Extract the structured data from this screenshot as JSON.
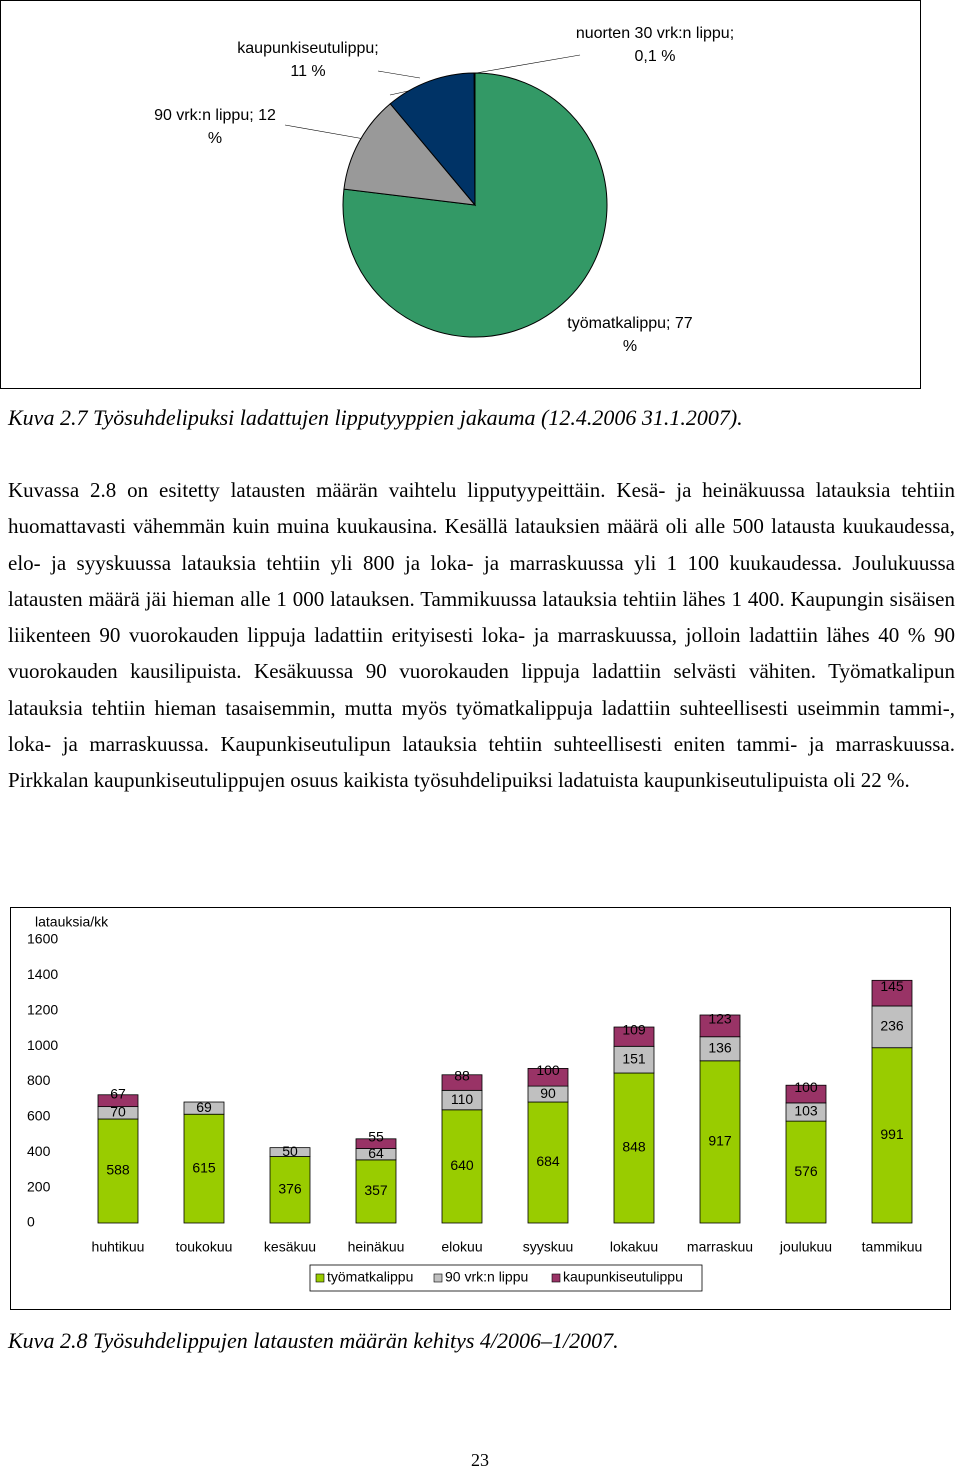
{
  "chart_data": [
    {
      "type": "pie",
      "values": [
        77,
        12,
        11,
        0.1
      ],
      "value_labels": [
        "työmatkalippu; 77 %",
        "90 vrk:n lippu; 12 %",
        "kaupunki­seutulippu; 11 %",
        "nuorten 30 vrk:n lippu; 0,1 %"
      ],
      "colors": [
        "#339966",
        "#999999",
        "#003366",
        "#6666cc"
      ]
    },
    {
      "type": "bar",
      "stacked": true,
      "y_label": "latauksia/kk",
      "categories": [
        "huhtikuu",
        "toukokuu",
        "kesäkuu",
        "heinäkuu",
        "elokuu",
        "syyskuu",
        "lokakuu",
        "marraskuu",
        "joulukuu",
        "tammikuu"
      ],
      "series": [
        {
          "name": "työmatkalippu",
          "color": "#99cc00",
          "values": [
            588,
            615,
            376,
            357,
            640,
            684,
            848,
            917,
            576,
            991
          ]
        },
        {
          "name": "90 vrk:n lippu",
          "color": "#c0c0c0",
          "values": [
            70,
            69,
            50,
            64,
            110,
            90,
            151,
            136,
            103,
            236
          ]
        },
        {
          "name": "kaupunkiseutulippu",
          "color": "#993366",
          "values": [
            67,
            null,
            null,
            55,
            88,
            100,
            109,
            123,
            100,
            145
          ]
        }
      ],
      "ylim": [
        0,
        1600
      ],
      "yticks": [
        0,
        200,
        400,
        600,
        800,
        1000,
        1200,
        1400,
        1600
      ],
      "legend": "bottom"
    }
  ],
  "captions": [
    "Kuva 2.7 Työsuhdelipuksi ladattujen lipputyyppien jakauma (12.4.2006 31.1.2007).",
    "Kuva 2.8 Työsuhdelippujen latausten määrän kehitys 4/2006–1/2007."
  ],
  "paragraph": "Kuvassa 2.8 on esitetty latausten määrän vaihtelu lipputyypeittäin. Kesä- ja heinäkuussa latauksia tehtiin huomattavasti vähemmän kuin muina kuukausina. Kesällä latauksien määrä oli alle 500 latausta kuukaudessa, elo- ja syyskuussa latauksia tehtiin yli 800 ja loka- ja marraskuussa yli 1 100 kuukaudessa. Joulukuussa latausten määrä jäi hieman alle 1 000 latauksen. Tammikuussa latauksia tehtiin lähes 1 400. Kaupungin sisäisen liikenteen 90 vuorokauden lippuja ladattiin erityisesti loka- ja marraskuussa, jolloin ladattiin lähes 40 % 90 vuorokauden kausilipuista. Kesäkuussa 90 vuorokauden lippuja ladattiin selvästi vähiten. Työmatkalipun latauksia tehtiin hieman tasaisemmin, mutta myös työmatkalippuja ladattiin suhteellisesti useimmin tammi-, loka- ja marraskuussa. Kaupunkiseutulipun latauksia tehtiin suhteellisesti eniten tammi- ja marraskuussa. Pirkkalan kaupunkiseutulippujen osuus kaikista työsuhdelipuiksi ladatuista kaupunkiseutulipuista oli 22 %.",
  "page_number": "23"
}
